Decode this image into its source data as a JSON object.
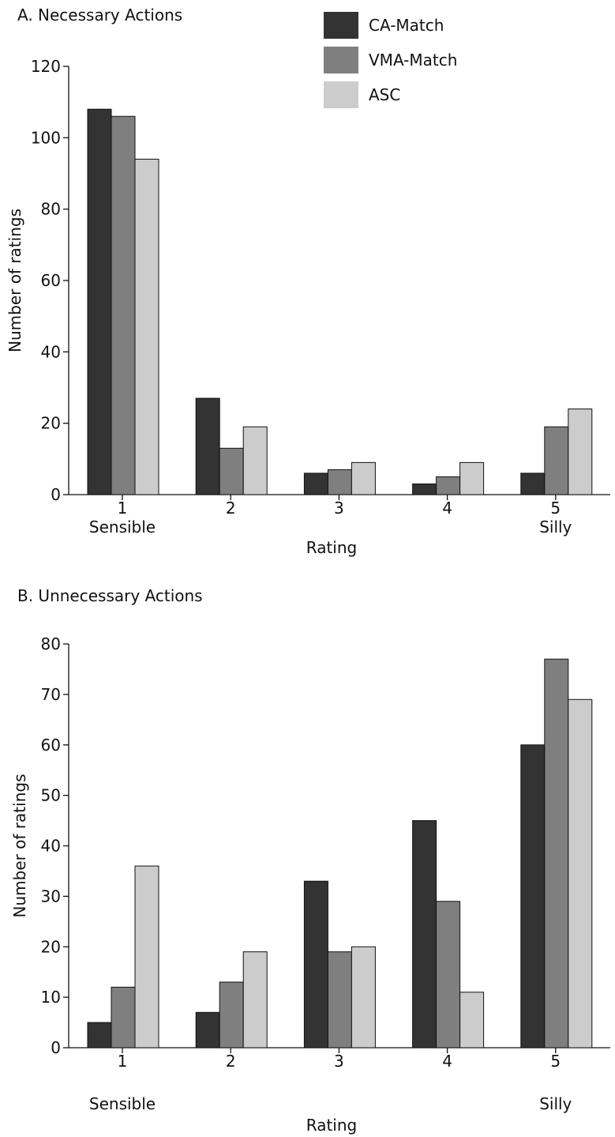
{
  "colors": {
    "CA-Match": "#333333",
    "VMA-Match": "#7f7f7f",
    "ASC": "#cccccc",
    "axis": "#111111"
  },
  "legend": {
    "placement": "top-right",
    "items": [
      "CA-Match",
      "VMA-Match",
      "ASC"
    ]
  },
  "chart_data": [
    {
      "type": "bar",
      "title": "A. Necessary Actions",
      "xlabel": "Rating",
      "ylabel": "Number of ratings",
      "categories": [
        "1",
        "2",
        "3",
        "4",
        "5"
      ],
      "category_sublabels": [
        "Sensible",
        "",
        "",
        "",
        "Silly"
      ],
      "ylim": [
        0,
        120
      ],
      "yticks": [
        0,
        20,
        40,
        60,
        80,
        100,
        120
      ],
      "grid": false,
      "series": [
        {
          "name": "CA-Match",
          "values": [
            108,
            27,
            6,
            3,
            6
          ]
        },
        {
          "name": "VMA-Match",
          "values": [
            106,
            13,
            7,
            5,
            19
          ]
        },
        {
          "name": "ASC",
          "values": [
            94,
            19,
            9,
            9,
            24
          ]
        }
      ]
    },
    {
      "type": "bar",
      "title": "B. Unnecessary Actions",
      "xlabel": "Rating",
      "ylabel": "Number of ratings",
      "categories": [
        "1",
        "2",
        "3",
        "4",
        "5"
      ],
      "category_sublabels": [
        "Sensible",
        "",
        "",
        "",
        "Silly"
      ],
      "ylim": [
        0,
        80
      ],
      "yticks": [
        0,
        10,
        20,
        30,
        40,
        50,
        60,
        70,
        80
      ],
      "grid": false,
      "series": [
        {
          "name": "CA-Match",
          "values": [
            5,
            7,
            33,
            45,
            60
          ]
        },
        {
          "name": "VMA-Match",
          "values": [
            12,
            13,
            19,
            29,
            77
          ]
        },
        {
          "name": "ASC",
          "values": [
            36,
            19,
            20,
            11,
            69
          ]
        }
      ]
    }
  ]
}
